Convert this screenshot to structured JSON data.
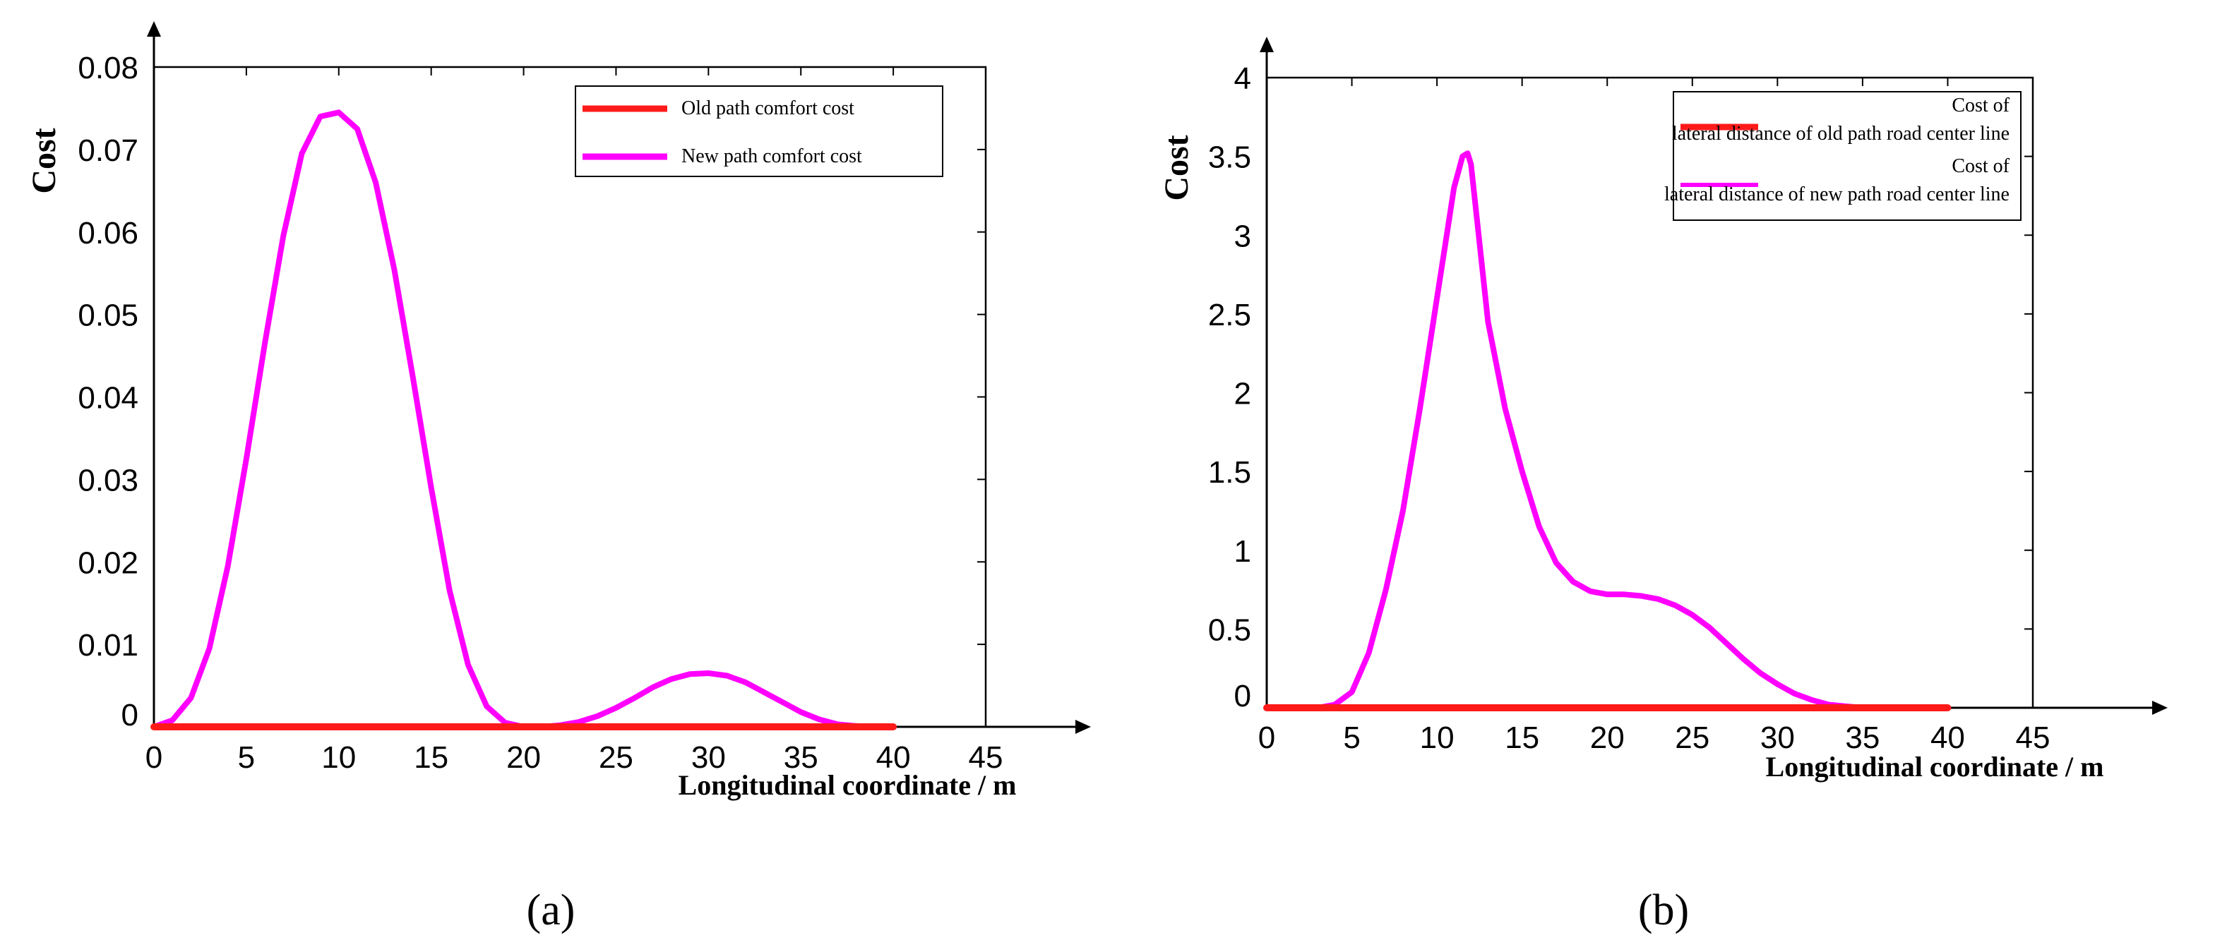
{
  "colors": {
    "old": "#ff1a1a",
    "new": "#ff00ff",
    "axis": "#000000"
  },
  "chart_data": [
    {
      "type": "line",
      "panel": "a",
      "caption": "(a)",
      "xlabel": "Longitudinal coordinate / m",
      "ylabel": "Cost",
      "xlim": [
        0,
        45
      ],
      "ylim": [
        0,
        0.08
      ],
      "xticks": [
        "0",
        "5",
        "10",
        "15",
        "20",
        "25",
        "30",
        "35",
        "40",
        "45"
      ],
      "yticks": [
        "0",
        "0.01",
        "0.02",
        "0.03",
        "0.04",
        "0.05",
        "0.06",
        "0.07",
        "0.08"
      ],
      "legend_position": "top-right",
      "series": [
        {
          "name": "Old path comfort cost",
          "color": "#ff1a1a",
          "x": [
            0,
            40
          ],
          "y": [
            0,
            0
          ]
        },
        {
          "name": "New path comfort cost",
          "color": "#ff00ff",
          "x": [
            0,
            1,
            2,
            3,
            4,
            5,
            6,
            7,
            8,
            9,
            10,
            11,
            12,
            13,
            14,
            15,
            16,
            17,
            18,
            19,
            20,
            21,
            22,
            23,
            24,
            25,
            26,
            27,
            28,
            29,
            30,
            31,
            32,
            33,
            34,
            35,
            36,
            37,
            38,
            39,
            40
          ],
          "y": [
            0.0,
            0.0008,
            0.0035,
            0.0095,
            0.0195,
            0.0325,
            0.0465,
            0.0595,
            0.0695,
            0.074,
            0.0745,
            0.0725,
            0.066,
            0.0555,
            0.0425,
            0.029,
            0.0165,
            0.0075,
            0.0025,
            0.0005,
            0.0,
            0.0,
            0.0002,
            0.0006,
            0.0013,
            0.0023,
            0.0035,
            0.0048,
            0.0058,
            0.0064,
            0.0065,
            0.0062,
            0.0054,
            0.0042,
            0.003,
            0.0018,
            0.0009,
            0.0003,
            0.0001,
            0.0,
            0.0
          ]
        }
      ]
    },
    {
      "type": "line",
      "panel": "b",
      "caption": "(b)",
      "xlabel": "Longitudinal coordinate / m",
      "ylabel": "Cost",
      "xlim": [
        0,
        45
      ],
      "ylim": [
        0,
        4
      ],
      "xticks": [
        "0",
        "5",
        "10",
        "15",
        "20",
        "25",
        "30",
        "35",
        "40",
        "45"
      ],
      "yticks": [
        "0",
        "0.5",
        "1",
        "1.5",
        "2",
        "2.5",
        "3",
        "3.5",
        "4"
      ],
      "legend_position": "top-right",
      "series": [
        {
          "name": "Cost of lateral distance of old path road center line",
          "color": "#ff1a1a",
          "x": [
            0,
            40
          ],
          "y": [
            0,
            0
          ]
        },
        {
          "name": "Cost of lateral distance of new path road center line",
          "color": "#ff00ff",
          "x": [
            0,
            3,
            4,
            5,
            6,
            7,
            8,
            9,
            10,
            10.5,
            11,
            11.5,
            11.8,
            12,
            12.5,
            13,
            14,
            15,
            16,
            17,
            18,
            19,
            20,
            21,
            22,
            23,
            24,
            25,
            26,
            27,
            28,
            29,
            30,
            31,
            32,
            33,
            34,
            35,
            36,
            40
          ],
          "y": [
            0,
            0.0,
            0.02,
            0.1,
            0.35,
            0.75,
            1.25,
            1.9,
            2.6,
            2.95,
            3.3,
            3.5,
            3.52,
            3.45,
            2.95,
            2.45,
            1.9,
            1.5,
            1.15,
            0.92,
            0.8,
            0.74,
            0.72,
            0.72,
            0.71,
            0.69,
            0.65,
            0.59,
            0.51,
            0.41,
            0.31,
            0.22,
            0.15,
            0.09,
            0.05,
            0.02,
            0.01,
            0.0,
            0.0,
            0.0
          ]
        }
      ]
    }
  ]
}
